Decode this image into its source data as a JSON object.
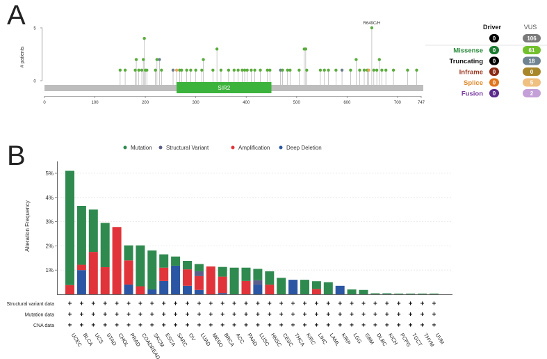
{
  "panels": {
    "a": "A",
    "b": "B"
  },
  "lollipop": {
    "ylabel": "# patients",
    "y_ticks": [
      0,
      5
    ],
    "x_ticks": [
      0,
      100,
      200,
      300,
      400,
      500,
      600,
      700,
      747
    ],
    "protein_length": 747,
    "domain": {
      "name": "SIR2",
      "start": 262,
      "end": 450,
      "color": "#3cb33c"
    },
    "highlight_label": "R649C/H",
    "mutations": [
      {
        "pos": 150,
        "count": 1,
        "type": "missense"
      },
      {
        "pos": 160,
        "count": 1,
        "type": "missense"
      },
      {
        "pos": 180,
        "count": 1,
        "type": "missense"
      },
      {
        "pos": 182,
        "count": 2,
        "type": "missense"
      },
      {
        "pos": 187,
        "count": 1,
        "type": "missense"
      },
      {
        "pos": 193,
        "count": 1,
        "type": "missense"
      },
      {
        "pos": 196,
        "count": 2,
        "type": "missense"
      },
      {
        "pos": 198,
        "count": 4,
        "type": "missense"
      },
      {
        "pos": 200,
        "count": 1,
        "type": "missense"
      },
      {
        "pos": 203,
        "count": 1,
        "type": "missense"
      },
      {
        "pos": 220,
        "count": 1,
        "type": "missense"
      },
      {
        "pos": 223,
        "count": 2,
        "type": "missense"
      },
      {
        "pos": 228,
        "count": 2,
        "type": "truncating"
      },
      {
        "pos": 232,
        "count": 1,
        "type": "missense"
      },
      {
        "pos": 255,
        "count": 1,
        "type": "truncating"
      },
      {
        "pos": 262,
        "count": 1,
        "type": "splice"
      },
      {
        "pos": 268,
        "count": 1,
        "type": "missense"
      },
      {
        "pos": 272,
        "count": 1,
        "type": "missense"
      },
      {
        "pos": 282,
        "count": 1,
        "type": "missense"
      },
      {
        "pos": 290,
        "count": 1,
        "type": "missense"
      },
      {
        "pos": 300,
        "count": 1,
        "type": "missense"
      },
      {
        "pos": 312,
        "count": 1,
        "type": "missense"
      },
      {
        "pos": 315,
        "count": 2,
        "type": "missense"
      },
      {
        "pos": 334,
        "count": 1,
        "type": "missense"
      },
      {
        "pos": 342,
        "count": 3,
        "type": "missense"
      },
      {
        "pos": 350,
        "count": 1,
        "type": "missense"
      },
      {
        "pos": 365,
        "count": 1,
        "type": "missense"
      },
      {
        "pos": 376,
        "count": 1,
        "type": "missense"
      },
      {
        "pos": 384,
        "count": 1,
        "type": "missense"
      },
      {
        "pos": 392,
        "count": 1,
        "type": "missense"
      },
      {
        "pos": 397,
        "count": 1,
        "type": "missense"
      },
      {
        "pos": 402,
        "count": 1,
        "type": "missense"
      },
      {
        "pos": 410,
        "count": 1,
        "type": "missense"
      },
      {
        "pos": 417,
        "count": 1,
        "type": "missense"
      },
      {
        "pos": 428,
        "count": 1,
        "type": "missense"
      },
      {
        "pos": 442,
        "count": 1,
        "type": "missense"
      },
      {
        "pos": 447,
        "count": 1,
        "type": "missense"
      },
      {
        "pos": 468,
        "count": 1,
        "type": "truncating"
      },
      {
        "pos": 472,
        "count": 1,
        "type": "missense"
      },
      {
        "pos": 482,
        "count": 1,
        "type": "missense"
      },
      {
        "pos": 487,
        "count": 1,
        "type": "missense"
      },
      {
        "pos": 505,
        "count": 1,
        "type": "missense"
      },
      {
        "pos": 515,
        "count": 3,
        "type": "missense"
      },
      {
        "pos": 518,
        "count": 3,
        "type": "missense"
      },
      {
        "pos": 520,
        "count": 1,
        "type": "missense"
      },
      {
        "pos": 547,
        "count": 1,
        "type": "missense"
      },
      {
        "pos": 555,
        "count": 1,
        "type": "missense"
      },
      {
        "pos": 563,
        "count": 1,
        "type": "missense"
      },
      {
        "pos": 578,
        "count": 1,
        "type": "missense"
      },
      {
        "pos": 590,
        "count": 1,
        "type": "truncating"
      },
      {
        "pos": 607,
        "count": 1,
        "type": "missense"
      },
      {
        "pos": 618,
        "count": 2,
        "type": "missense"
      },
      {
        "pos": 625,
        "count": 1,
        "type": "missense"
      },
      {
        "pos": 634,
        "count": 1,
        "type": "missense"
      },
      {
        "pos": 640,
        "count": 1,
        "type": "missense"
      },
      {
        "pos": 643,
        "count": 1,
        "type": "splice"
      },
      {
        "pos": 649,
        "count": 5,
        "type": "missense"
      },
      {
        "pos": 653,
        "count": 1,
        "type": "missense"
      },
      {
        "pos": 659,
        "count": 1,
        "type": "missense"
      },
      {
        "pos": 664,
        "count": 2,
        "type": "missense"
      },
      {
        "pos": 669,
        "count": 1,
        "type": "missense"
      },
      {
        "pos": 677,
        "count": 1,
        "type": "missense"
      },
      {
        "pos": 692,
        "count": 1,
        "type": "missense"
      },
      {
        "pos": 720,
        "count": 1,
        "type": "missense"
      },
      {
        "pos": 738,
        "count": 1,
        "type": "missense"
      }
    ]
  },
  "mutation_legend": {
    "col_driver": "Driver",
    "col_vus": "VUS",
    "overall": {
      "driver": "0",
      "vus": "106"
    },
    "rows": [
      {
        "label": "Missense",
        "label_color": "#2a8a3c",
        "driver": "0",
        "vus": "61",
        "driver_color": "#1a7a30",
        "vus_color": "#72c02c"
      },
      {
        "label": "Truncating",
        "label_color": "#111111",
        "driver": "0",
        "vus": "18",
        "driver_color": "#000000",
        "vus_color": "#6f8391"
      },
      {
        "label": "Inframe",
        "label_color": "#9b3a24",
        "driver": "0",
        "vus": "0",
        "driver_color": "#8b2a14",
        "vus_color": "#a8862a"
      },
      {
        "label": "Splice",
        "label_color": "#e08a2c",
        "driver": "0",
        "vus": "5",
        "driver_color": "#e0761c",
        "vus_color": "#f0c080"
      },
      {
        "label": "Fusion",
        "label_color": "#7a3ea0",
        "driver": "0",
        "vus": "2",
        "driver_color": "#5a2a8a",
        "vus_color": "#c4a0d8"
      }
    ]
  },
  "chart_data": {
    "type": "bar",
    "stacked": true,
    "ylabel": "Alteration Frequency",
    "ylim": [
      0,
      5.5
    ],
    "y_ticks": [
      "1%",
      "2%",
      "3%",
      "4%",
      "5%"
    ],
    "legend": [
      {
        "name": "Mutation",
        "color": "#2f8a4f"
      },
      {
        "name": "Structural Variant",
        "color": "#5b5f8a"
      },
      {
        "name": "Amplification",
        "color": "#e0343a"
      },
      {
        "name": "Deep Deletion",
        "color": "#2b56a3"
      }
    ],
    "categories": [
      "UCEC",
      "BLCA",
      "UCS",
      "STAD",
      "CHOL",
      "PRAD",
      "COADREAD",
      "SKCM",
      "ESCA",
      "SARC",
      "OV",
      "LUAD",
      "MESO",
      "BRCA",
      "ACC",
      "PAAD",
      "LUSC",
      "HNSC",
      "CESC",
      "THCA",
      "KIRC",
      "LIHC",
      "LAML",
      "KIRP",
      "LGG",
      "GBM",
      "DLBC",
      "KICH",
      "PCPG",
      "TGCT",
      "THYM",
      "UVM"
    ],
    "series": [
      {
        "name": "Deep Deletion",
        "values": [
          0,
          1.0,
          0,
          0,
          0,
          0.4,
          0,
          0.2,
          0.55,
          1.18,
          0.35,
          0.18,
          0,
          0.05,
          0,
          0,
          0.4,
          0,
          0,
          0.6,
          0,
          0,
          0,
          0.35,
          0,
          0,
          0,
          0,
          0,
          0,
          0,
          0
        ]
      },
      {
        "name": "Amplification",
        "values": [
          0.38,
          0.22,
          1.75,
          1.12,
          2.78,
          1.0,
          0.33,
          0,
          0.55,
          0,
          0.68,
          0.57,
          1.15,
          0.68,
          0,
          0.55,
          0,
          0.4,
          0,
          0,
          0,
          0.22,
          0,
          0,
          0,
          0,
          0,
          0,
          0,
          0,
          0,
          0
        ]
      },
      {
        "name": "Structural Variant",
        "values": [
          0,
          0,
          0,
          0,
          0,
          0,
          0,
          0,
          0,
          0,
          0,
          0.2,
          0,
          0,
          0,
          0,
          0.18,
          0,
          0,
          0,
          0,
          0,
          0,
          0,
          0,
          0,
          0,
          0,
          0,
          0,
          0,
          0
        ]
      },
      {
        "name": "Mutation",
        "values": [
          4.72,
          2.43,
          1.75,
          1.83,
          0,
          0.62,
          1.69,
          1.61,
          0.55,
          0.38,
          0.35,
          0.3,
          0,
          0.4,
          1.1,
          0.55,
          0.47,
          0.55,
          0.68,
          0,
          0.6,
          0.32,
          0.5,
          0,
          0.2,
          0.18,
          0.04,
          0.04,
          0.03,
          0.03,
          0.03,
          0.03
        ]
      }
    ],
    "profile_rows": [
      "Structural variant data",
      "Mutation data",
      "CNA data"
    ],
    "profile_mark": "+"
  }
}
